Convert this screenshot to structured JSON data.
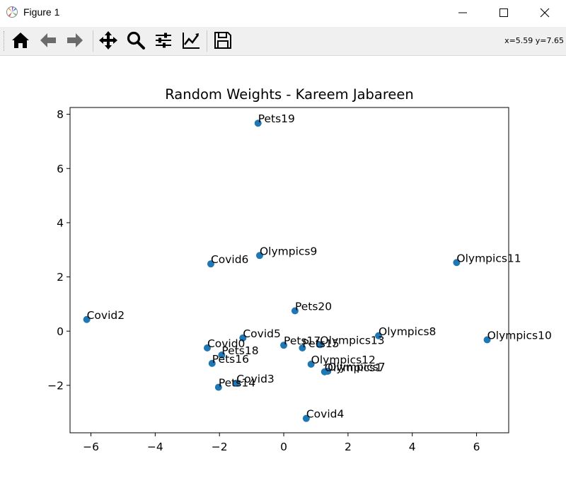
{
  "window": {
    "title": "Figure 1",
    "minimize_icon": "minimize-icon",
    "maximize_icon": "maximize-icon",
    "close_icon": "close-icon"
  },
  "toolbar": {
    "buttons": [
      {
        "name": "home-button",
        "icon": "home-icon"
      },
      {
        "name": "back-button",
        "icon": "arrow-left-icon"
      },
      {
        "name": "forward-button",
        "icon": "arrow-right-icon"
      },
      {
        "name": "pan-button",
        "icon": "move-icon"
      },
      {
        "name": "zoom-button",
        "icon": "zoom-icon"
      },
      {
        "name": "subplots-button",
        "icon": "sliders-icon"
      },
      {
        "name": "edit-axis-button",
        "icon": "chart-line-icon"
      },
      {
        "name": "save-button",
        "icon": "save-icon"
      }
    ],
    "coordinates": "x=5.59 y=7.65"
  },
  "chart_data": {
    "type": "scatter",
    "title": "Random Weights - Kareem Jabareen",
    "xlabel": "",
    "ylabel": "",
    "xlim": [
      -6.65,
      7.0
    ],
    "ylim": [
      -3.75,
      8.25
    ],
    "xticks": [
      -6,
      -4,
      -2,
      0,
      2,
      4,
      6
    ],
    "yticks": [
      -2,
      0,
      2,
      4,
      6,
      8
    ],
    "xtick_labels": [
      "−6",
      "−4",
      "−2",
      "0",
      "2",
      "4",
      "6"
    ],
    "ytick_labels": [
      "−2",
      "0",
      "2",
      "4",
      "6",
      "8"
    ],
    "grid": false,
    "marker_color": "#1f77b4",
    "points": [
      {
        "label": "Covid0",
        "x": -2.38,
        "y": -0.62
      },
      {
        "label": "Olympics1",
        "x": 1.27,
        "y": -1.5
      },
      {
        "label": "Covid2",
        "x": -6.13,
        "y": 0.43
      },
      {
        "label": "Covid3",
        "x": -1.47,
        "y": -1.92
      },
      {
        "label": "Covid4",
        "x": 0.7,
        "y": -3.22
      },
      {
        "label": "Covid5",
        "x": -1.27,
        "y": -0.25
      },
      {
        "label": "Covid6",
        "x": -2.27,
        "y": 2.48
      },
      {
        "label": "Olympics7",
        "x": 1.37,
        "y": -1.48
      },
      {
        "label": "Olympics8",
        "x": 2.95,
        "y": -0.17
      },
      {
        "label": "Olympics9",
        "x": -0.75,
        "y": 2.79
      },
      {
        "label": "Olympics10",
        "x": 6.33,
        "y": -0.32
      },
      {
        "label": "Olympics11",
        "x": 5.38,
        "y": 2.53
      },
      {
        "label": "Olympics12",
        "x": 0.85,
        "y": -1.22
      },
      {
        "label": "Olympics13",
        "x": 1.13,
        "y": -0.5
      },
      {
        "label": "Pets14",
        "x": -2.03,
        "y": -2.07
      },
      {
        "label": "Pets15",
        "x": 0.58,
        "y": -0.62
      },
      {
        "label": "Pets16",
        "x": -2.23,
        "y": -1.19
      },
      {
        "label": "Pets17",
        "x": 0.0,
        "y": -0.52
      },
      {
        "label": "Pets18",
        "x": -1.93,
        "y": -0.88
      },
      {
        "label": "Pets19",
        "x": -0.8,
        "y": 7.67
      },
      {
        "label": "Pets20",
        "x": 0.35,
        "y": 0.75
      }
    ]
  }
}
